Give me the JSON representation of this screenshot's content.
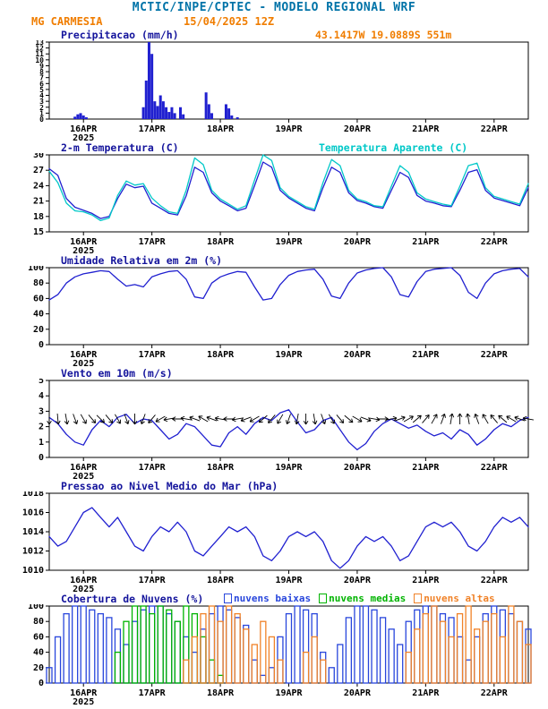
{
  "header": {
    "title": "MCTIC/INPE/CPTEC - MODELO REGIONAL WRF",
    "station": "MG CARMESIA",
    "run": "15/04/2025 12Z",
    "location": "43.1417W 19.0889S 551m"
  },
  "x_axis": {
    "min": 0,
    "max": 168,
    "tick_hours": [
      12,
      36,
      60,
      84,
      108,
      132,
      156
    ],
    "tick_labels": [
      "16APR",
      "17APR",
      "18APR",
      "19APR",
      "20APR",
      "21APR",
      "22APR"
    ],
    "year": "2025"
  },
  "colors": {
    "header_title": "#0073a8",
    "accent_orange": "#f07d00",
    "panel_title_navy": "#14149c",
    "line_blue": "#2020d0",
    "cyan": "#00c8c8",
    "cloud_blue": "#2846dc",
    "cloud_green": "#00b400",
    "cloud_orange": "#f08228",
    "axis_black": "#000000"
  },
  "chart_data": [
    {
      "type": "bar",
      "title": "Precipitacao (mm/h)",
      "right_label": "43.1417W 19.0889S 551m",
      "ylim": [
        0,
        13
      ],
      "yticks": [
        0,
        1,
        2,
        3,
        4,
        5,
        6,
        7,
        8,
        9,
        10,
        11,
        12,
        13
      ],
      "ytick_font": 8,
      "bar_color": "#2020d0",
      "points": [
        [
          9,
          0.4
        ],
        [
          10,
          0.8
        ],
        [
          11,
          1.0
        ],
        [
          12,
          0.6
        ],
        [
          13,
          0.3
        ],
        [
          33,
          2.0
        ],
        [
          34,
          6.5
        ],
        [
          35,
          13.0
        ],
        [
          36,
          11.0
        ],
        [
          37,
          3.0
        ],
        [
          38,
          2.2
        ],
        [
          39,
          4.0
        ],
        [
          40,
          3.0
        ],
        [
          41,
          2.0
        ],
        [
          42,
          1.2
        ],
        [
          43,
          2.0
        ],
        [
          44,
          1.0
        ],
        [
          46,
          2.0
        ],
        [
          47,
          0.8
        ],
        [
          55,
          4.5
        ],
        [
          56,
          2.5
        ],
        [
          57,
          1.0
        ],
        [
          62,
          2.5
        ],
        [
          63,
          1.8
        ],
        [
          64,
          0.6
        ],
        [
          66,
          0.3
        ]
      ]
    },
    {
      "type": "line",
      "title": "2-m Temperatura (C)",
      "right_label": "Temperatura Aparente (C)",
      "ylim": [
        15,
        30
      ],
      "yticks": [
        15,
        18,
        21,
        24,
        27,
        30
      ],
      "t_step": 3,
      "series": [
        {
          "name": "Temperatura",
          "color": "#2020d0",
          "values": [
            27.3,
            26.0,
            21.5,
            19.8,
            19.2,
            18.6,
            17.6,
            18.0,
            21.5,
            24.3,
            23.6,
            23.9,
            20.6,
            19.6,
            18.6,
            18.3,
            22.0,
            27.6,
            26.6,
            22.6,
            21.0,
            20.1,
            19.1,
            19.6,
            24.0,
            28.6,
            27.6,
            23.1,
            21.6,
            20.6,
            19.6,
            19.1,
            23.6,
            27.6,
            26.6,
            22.6,
            21.1,
            20.6,
            19.9,
            19.6,
            23.1,
            26.6,
            25.6,
            22.1,
            21.0,
            20.6,
            20.1,
            19.9,
            23.1,
            26.6,
            27.1,
            23.1,
            21.6,
            21.1,
            20.6,
            20.1,
            23.6
          ]
        },
        {
          "name": "Temperatura Aparente",
          "color": "#00c8c8",
          "values": [
            26.8,
            24.6,
            20.6,
            19.1,
            18.9,
            18.3,
            17.2,
            17.7,
            22.1,
            24.9,
            24.1,
            24.4,
            21.6,
            20.1,
            18.9,
            18.6,
            23.1,
            29.4,
            28.1,
            23.1,
            21.4,
            20.4,
            19.4,
            20.1,
            25.1,
            30.0,
            28.9,
            23.6,
            21.9,
            20.9,
            19.9,
            19.4,
            24.6,
            29.1,
            27.9,
            23.1,
            21.4,
            20.9,
            20.1,
            19.9,
            23.9,
            27.9,
            26.6,
            22.6,
            21.4,
            20.9,
            20.4,
            20.1,
            23.9,
            27.9,
            28.4,
            23.6,
            21.9,
            21.4,
            20.9,
            20.4,
            24.4
          ]
        }
      ]
    },
    {
      "type": "line",
      "title": "Umidade Relativa em 2m (%)",
      "ylim": [
        0,
        100
      ],
      "yticks": [
        0,
        20,
        40,
        60,
        80,
        100
      ],
      "t_step": 3,
      "series": [
        {
          "name": "Umidade Relativa",
          "color": "#2020d0",
          "values": [
            58,
            65,
            80,
            88,
            92,
            94,
            96,
            95,
            85,
            76,
            78,
            75,
            88,
            92,
            95,
            96,
            85,
            62,
            60,
            80,
            88,
            92,
            95,
            94,
            75,
            58,
            60,
            78,
            90,
            95,
            97,
            98,
            85,
            63,
            60,
            80,
            93,
            97,
            99,
            100,
            88,
            65,
            62,
            82,
            95,
            98,
            99,
            100,
            90,
            68,
            60,
            80,
            92,
            96,
            98,
            99,
            88
          ]
        }
      ]
    },
    {
      "type": "wind",
      "title": "Vento em 10m (m/s)",
      "ylim": [
        0,
        5
      ],
      "yticks": [
        0,
        1,
        2,
        3,
        4,
        5
      ],
      "t_step": 3,
      "series": [
        {
          "name": "Velocidade do Vento",
          "color": "#2020d0",
          "values": [
            2.6,
            2.2,
            1.5,
            1.0,
            0.8,
            1.8,
            2.4,
            2.0,
            2.6,
            2.8,
            2.2,
            2.5,
            2.4,
            1.8,
            1.2,
            1.5,
            2.2,
            2.0,
            1.4,
            0.8,
            0.7,
            1.6,
            2.0,
            1.5,
            2.2,
            2.6,
            2.4,
            2.9,
            3.1,
            2.3,
            1.6,
            1.8,
            2.4,
            2.6,
            1.8,
            1.0,
            0.5,
            0.9,
            1.7,
            2.2,
            2.5,
            2.2,
            1.9,
            2.1,
            1.7,
            1.4,
            1.6,
            1.2,
            1.8,
            1.5,
            0.8,
            1.2,
            1.8,
            2.2,
            2.0,
            2.4,
            2.6
          ]
        }
      ],
      "arrows": {
        "y": 2.5,
        "color": "#000000",
        "directions_deg": [
          90,
          85,
          80,
          70,
          60,
          50,
          45,
          50,
          60,
          70,
          90,
          110,
          130,
          150,
          170,
          180,
          190,
          200,
          210,
          200,
          190,
          180,
          170,
          160,
          150,
          140,
          130,
          120,
          110,
          100,
          90,
          80,
          70,
          60,
          50,
          40,
          30,
          20,
          10,
          0,
          350,
          340,
          330,
          320,
          310,
          300,
          290,
          280,
          270,
          260,
          250,
          240,
          230,
          220,
          210,
          200,
          190
        ]
      }
    },
    {
      "type": "line",
      "title": "Pressao ao Nivel Medio do Mar (hPa)",
      "ylim": [
        1010,
        1018
      ],
      "yticks": [
        1010,
        1012,
        1014,
        1016,
        1018
      ],
      "t_step": 3,
      "series": [
        {
          "name": "Pressao",
          "color": "#2020d0",
          "values": [
            1013.5,
            1012.5,
            1013.0,
            1014.5,
            1016.0,
            1016.5,
            1015.5,
            1014.5,
            1015.5,
            1014.0,
            1012.5,
            1012.0,
            1013.5,
            1014.5,
            1014.0,
            1015.0,
            1014.0,
            1012.0,
            1011.5,
            1012.5,
            1013.5,
            1014.5,
            1014.0,
            1014.5,
            1013.5,
            1011.5,
            1011.0,
            1012.0,
            1013.5,
            1014.0,
            1013.5,
            1014.0,
            1013.0,
            1011.0,
            1010.2,
            1011.0,
            1012.5,
            1013.5,
            1013.0,
            1013.5,
            1012.5,
            1011.0,
            1011.5,
            1013.0,
            1014.5,
            1015.0,
            1014.5,
            1015.0,
            1014.0,
            1012.5,
            1012.0,
            1013.0,
            1014.5,
            1015.5,
            1015.0,
            1015.5,
            1014.5
          ]
        }
      ]
    },
    {
      "type": "cloud",
      "title": "Cobertura de Nuvens (%)",
      "ylim": [
        0,
        100
      ],
      "yticks": [
        0,
        20,
        40,
        60,
        80,
        100
      ],
      "t_step": 3,
      "legend": [
        {
          "label": "nuvens baixas",
          "color": "#2846dc"
        },
        {
          "label": "nuvens medias",
          "color": "#00b400"
        },
        {
          "label": "nuvens altas",
          "color": "#f08228"
        }
      ],
      "series": [
        {
          "name": "nuvens baixas",
          "color": "#2846dc",
          "values": [
            20,
            60,
            90,
            100,
            100,
            95,
            90,
            85,
            70,
            50,
            80,
            95,
            100,
            100,
            90,
            80,
            60,
            40,
            70,
            90,
            100,
            95,
            85,
            75,
            30,
            10,
            20,
            60,
            90,
            100,
            95,
            90,
            40,
            20,
            50,
            85,
            100,
            100,
            95,
            85,
            70,
            50,
            80,
            95,
            100,
            100,
            90,
            85,
            60,
            30,
            60,
            90,
            100,
            95,
            90,
            80,
            70
          ]
        },
        {
          "name": "nuvens medias",
          "color": "#00b400",
          "values": [
            0,
            0,
            0,
            0,
            0,
            0,
            0,
            0,
            40,
            80,
            100,
            100,
            90,
            100,
            95,
            80,
            100,
            90,
            60,
            30,
            10,
            0,
            0,
            0,
            0,
            0,
            0,
            0,
            0,
            0,
            0,
            0,
            0,
            0,
            0,
            0,
            0,
            0,
            0,
            0,
            0,
            0,
            0,
            0,
            0,
            0,
            0,
            0,
            0,
            0,
            0,
            0,
            0,
            0,
            0,
            0,
            0
          ]
        },
        {
          "name": "nuvens altas",
          "color": "#f08228",
          "values": [
            0,
            0,
            0,
            0,
            0,
            0,
            0,
            0,
            0,
            0,
            0,
            0,
            0,
            0,
            0,
            0,
            30,
            60,
            90,
            100,
            80,
            100,
            90,
            70,
            50,
            80,
            60,
            30,
            0,
            0,
            40,
            60,
            30,
            0,
            0,
            0,
            0,
            0,
            0,
            0,
            0,
            0,
            40,
            70,
            90,
            100,
            80,
            60,
            90,
            100,
            70,
            80,
            90,
            60,
            100,
            80,
            50
          ]
        }
      ]
    }
  ]
}
